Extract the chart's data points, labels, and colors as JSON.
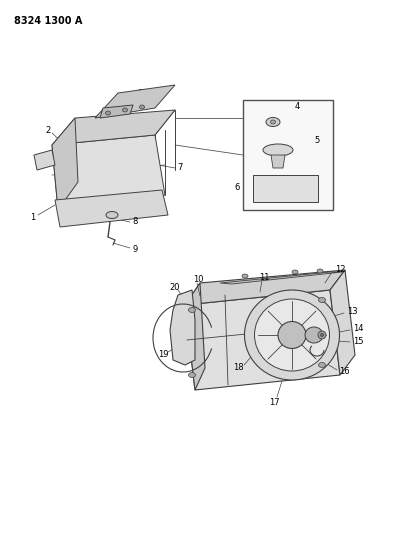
{
  "title": "8324 1300 A",
  "background_color": "#ffffff",
  "text_color": "#000000",
  "line_color": "#404040",
  "fig_width": 4.1,
  "fig_height": 5.33,
  "dpi": 100
}
